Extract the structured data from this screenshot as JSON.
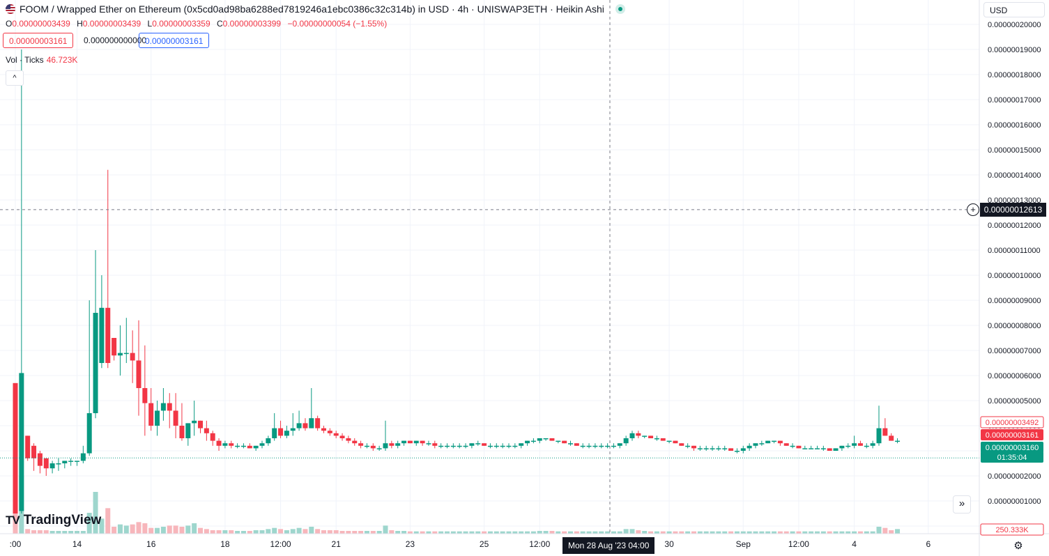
{
  "header": {
    "title": "FOOM / Wrapped Ether on Ethereum (0x5cd0ad98ba6288ed7819246a1ebc0386c32c314b) in USD · 4h · UNISWAP3ETH · Heikin Ashi",
    "o_key": "O",
    "o_val": "0.00000003439",
    "h_key": "H",
    "h_val": "0.00000003439",
    "l_key": "L",
    "l_val": "0.00000003359",
    "c_key": "C",
    "c_val": "0.00000003399",
    "change": "−0.00000000054 (−1.55%)"
  },
  "price_boxes": {
    "sell": "0.00000003161",
    "spread": "0.000000000000",
    "buy": "0.00000003161"
  },
  "volume": {
    "label": "Vol · Ticks",
    "value": "46.723K",
    "axis_label": "250.333K"
  },
  "currency_select": "USD",
  "logo_text": "TradingView",
  "crosshair": {
    "x_label": "Mon 28 Aug '23   04:00",
    "y_label": "0.00000012613"
  },
  "price_labels": {
    "high_marker": "0.00000003492",
    "last": "0.00000003161",
    "bid": "0.00000003160",
    "countdown": "01:35:04"
  },
  "colors": {
    "up": "#089981",
    "down": "#f23645",
    "up_vol": "#9ed6cd",
    "down_vol": "#f7b6bb",
    "grid": "#f0f3fa",
    "text": "#131722"
  },
  "icons": {
    "collapse": "chevron-up-icon",
    "goto_realtime": "double-chevron-right-icon",
    "settings": "gear-icon",
    "crosshair_add": "plus-circle-icon",
    "live": "live-dot-icon"
  },
  "chart_data": {
    "type": "candlestick",
    "style": "Heikin Ashi",
    "interval": "4h",
    "exchange": "UNISWAP3ETH",
    "y_axis_ticks": [
      "0.00000020000",
      "0.00000019000",
      "0.00000018000",
      "0.00000017000",
      "0.00000016000",
      "0.00000015000",
      "0.00000014000",
      "0.00000013000",
      "0.00000012000",
      "0.00000011000",
      "0.00000010000",
      "0.00000009000",
      "0.00000008000",
      "0.00000007000",
      "0.00000006000",
      "0.00000005000",
      "0.00000004000",
      "0.00000003000",
      "0.00000002000",
      "0.00000001000",
      "0.00000000000"
    ],
    "ylim": [
      0,
      2.1e-07
    ],
    "x_axis_ticks": [
      {
        "label": ":00",
        "idx": 0
      },
      {
        "label": "14",
        "idx": 10
      },
      {
        "label": "16",
        "idx": 22
      },
      {
        "label": "18",
        "idx": 34
      },
      {
        "label": "12:00",
        "idx": 43
      },
      {
        "label": "21",
        "idx": 52
      },
      {
        "label": "23",
        "idx": 64
      },
      {
        "label": "25",
        "idx": 76
      },
      {
        "label": "12:00",
        "idx": 85
      },
      {
        "label": "30",
        "idx": 106
      },
      {
        "label": "Sep",
        "idx": 118
      },
      {
        "label": "12:00",
        "idx": 127
      },
      {
        "label": "4",
        "idx": 136
      },
      {
        "label": "6",
        "idx": 148
      }
    ],
    "candles_ohlc_x1e8": [
      [
        5.7,
        5.5,
        0.6,
        0.5
      ],
      [
        0.6,
        19.0,
        0.5,
        6.1
      ],
      [
        3.6,
        3.6,
        2.6,
        2.7
      ],
      [
        3.2,
        3.3,
        2.2,
        2.7
      ],
      [
        2.9,
        3.0,
        2.1,
        2.4
      ],
      [
        2.7,
        2.7,
        2.0,
        2.3
      ],
      [
        2.3,
        2.6,
        2.1,
        2.5
      ],
      [
        2.5,
        2.7,
        2.2,
        2.5
      ],
      [
        2.5,
        2.6,
        2.3,
        2.6
      ],
      [
        2.6,
        2.7,
        2.4,
        2.6
      ],
      [
        2.6,
        2.6,
        2.4,
        2.6
      ],
      [
        2.6,
        3.2,
        2.5,
        2.9
      ],
      [
        2.9,
        9.0,
        2.8,
        4.5
      ],
      [
        4.5,
        11.0,
        4.3,
        8.5
      ],
      [
        6.5,
        10.0,
        6.3,
        8.7
      ],
      [
        8.7,
        14.2,
        6.3,
        6.5
      ],
      [
        7.5,
        7.5,
        6.6,
        6.8
      ],
      [
        6.8,
        8.0,
        6.0,
        6.9
      ],
      [
        6.9,
        8.3,
        6.5,
        6.9
      ],
      [
        6.9,
        7.8,
        5.7,
        6.6
      ],
      [
        6.6,
        8.2,
        4.4,
        5.5
      ],
      [
        5.5,
        7.2,
        3.6,
        4.9
      ],
      [
        4.9,
        5.5,
        3.8,
        4.0
      ],
      [
        4.0,
        5.0,
        3.6,
        4.6
      ],
      [
        4.6,
        5.5,
        4.2,
        4.9
      ],
      [
        4.9,
        5.3,
        3.9,
        4.6
      ],
      [
        4.6,
        5.3,
        3.5,
        4.0
      ],
      [
        4.0,
        4.9,
        3.4,
        3.5
      ],
      [
        3.5,
        4.1,
        3.2,
        4.1
      ],
      [
        4.1,
        5.0,
        3.6,
        4.2
      ],
      [
        4.2,
        4.2,
        3.7,
        3.9
      ],
      [
        3.9,
        4.2,
        3.4,
        3.7
      ],
      [
        3.7,
        3.8,
        3.2,
        3.4
      ],
      [
        3.4,
        3.5,
        3.0,
        3.2
      ],
      [
        3.2,
        3.4,
        3.1,
        3.3
      ],
      [
        3.3,
        3.4,
        3.1,
        3.2
      ],
      [
        3.2,
        3.3,
        3.1,
        3.2
      ],
      [
        3.2,
        3.3,
        3.1,
        3.2
      ],
      [
        3.2,
        3.3,
        3.1,
        3.1
      ],
      [
        3.1,
        3.2,
        3.0,
        3.2
      ],
      [
        3.2,
        3.4,
        3.1,
        3.3
      ],
      [
        3.3,
        3.6,
        3.2,
        3.5
      ],
      [
        3.5,
        4.5,
        3.4,
        3.9
      ],
      [
        3.9,
        4.2,
        3.5,
        3.6
      ],
      [
        3.6,
        4.0,
        3.5,
        3.8
      ],
      [
        3.8,
        4.5,
        3.6,
        3.9
      ],
      [
        3.9,
        4.6,
        3.8,
        4.1
      ],
      [
        4.1,
        4.3,
        3.8,
        3.9
      ],
      [
        3.9,
        5.5,
        3.9,
        4.3
      ],
      [
        4.3,
        4.4,
        3.8,
        3.9
      ],
      [
        3.9,
        4.0,
        3.7,
        3.8
      ],
      [
        3.8,
        3.9,
        3.6,
        3.7
      ],
      [
        3.7,
        3.8,
        3.5,
        3.6
      ],
      [
        3.6,
        3.7,
        3.4,
        3.5
      ],
      [
        3.5,
        3.6,
        3.3,
        3.4
      ],
      [
        3.4,
        3.5,
        3.2,
        3.3
      ],
      [
        3.3,
        3.4,
        3.1,
        3.2
      ],
      [
        3.2,
        3.3,
        3.1,
        3.2
      ],
      [
        3.2,
        3.3,
        3.0,
        3.1
      ],
      [
        3.1,
        3.2,
        3.0,
        3.1
      ],
      [
        3.1,
        4.2,
        3.0,
        3.3
      ],
      [
        3.3,
        3.4,
        3.1,
        3.2
      ],
      [
        3.2,
        3.4,
        3.1,
        3.3
      ],
      [
        3.3,
        3.4,
        3.2,
        3.4
      ],
      [
        3.4,
        3.4,
        3.3,
        3.3
      ],
      [
        3.3,
        3.4,
        3.2,
        3.4
      ],
      [
        3.4,
        3.4,
        3.2,
        3.3
      ],
      [
        3.3,
        3.4,
        3.2,
        3.3
      ],
      [
        3.3,
        3.4,
        3.1,
        3.2
      ],
      [
        3.2,
        3.3,
        3.1,
        3.2
      ],
      [
        3.2,
        3.3,
        3.1,
        3.2
      ],
      [
        3.2,
        3.3,
        3.1,
        3.2
      ],
      [
        3.2,
        3.3,
        3.1,
        3.2
      ],
      [
        3.2,
        3.3,
        3.1,
        3.2
      ],
      [
        3.2,
        3.3,
        3.1,
        3.3
      ],
      [
        3.3,
        3.4,
        3.2,
        3.3
      ],
      [
        3.3,
        3.3,
        3.2,
        3.2
      ],
      [
        3.2,
        3.3,
        3.1,
        3.2
      ],
      [
        3.2,
        3.3,
        3.1,
        3.2
      ],
      [
        3.2,
        3.3,
        3.1,
        3.2
      ],
      [
        3.2,
        3.3,
        3.1,
        3.2
      ],
      [
        3.2,
        3.3,
        3.1,
        3.2
      ],
      [
        3.2,
        3.3,
        3.1,
        3.3
      ],
      [
        3.3,
        3.4,
        3.2,
        3.4
      ],
      [
        3.4,
        3.5,
        3.3,
        3.4
      ],
      [
        3.4,
        3.5,
        3.3,
        3.5
      ],
      [
        3.5,
        3.5,
        3.4,
        3.5
      ],
      [
        3.5,
        3.5,
        3.4,
        3.4
      ],
      [
        3.4,
        3.4,
        3.3,
        3.4
      ],
      [
        3.4,
        3.4,
        3.3,
        3.3
      ],
      [
        3.3,
        3.4,
        3.2,
        3.3
      ],
      [
        3.3,
        3.3,
        3.2,
        3.2
      ],
      [
        3.2,
        3.3,
        3.1,
        3.2
      ],
      [
        3.2,
        3.3,
        3.1,
        3.2
      ],
      [
        3.2,
        3.3,
        3.1,
        3.2
      ],
      [
        3.2,
        3.3,
        3.1,
        3.2
      ],
      [
        3.2,
        3.3,
        3.1,
        3.2
      ],
      [
        3.2,
        3.3,
        3.1,
        3.2
      ],
      [
        3.2,
        3.3,
        3.1,
        3.3
      ],
      [
        3.3,
        3.6,
        3.2,
        3.5
      ],
      [
        3.5,
        3.8,
        3.4,
        3.7
      ],
      [
        3.7,
        3.8,
        3.5,
        3.6
      ],
      [
        3.6,
        3.6,
        3.5,
        3.6
      ],
      [
        3.6,
        3.6,
        3.5,
        3.5
      ],
      [
        3.5,
        3.6,
        3.4,
        3.5
      ],
      [
        3.5,
        3.5,
        3.4,
        3.4
      ],
      [
        3.4,
        3.4,
        3.3,
        3.4
      ],
      [
        3.4,
        3.4,
        3.3,
        3.3
      ],
      [
        3.3,
        3.3,
        3.2,
        3.2
      ],
      [
        3.2,
        3.3,
        3.1,
        3.2
      ],
      [
        3.2,
        3.2,
        3.0,
        3.1
      ],
      [
        3.1,
        3.2,
        3.0,
        3.1
      ],
      [
        3.1,
        3.2,
        3.0,
        3.1
      ],
      [
        3.1,
        3.2,
        3.0,
        3.1
      ],
      [
        3.1,
        3.2,
        3.0,
        3.1
      ],
      [
        3.1,
        3.2,
        3.0,
        3.1
      ],
      [
        3.1,
        3.1,
        3.0,
        3.0
      ],
      [
        3.0,
        3.1,
        2.9,
        3.0
      ],
      [
        3.0,
        3.2,
        2.9,
        3.1
      ],
      [
        3.1,
        3.3,
        3.0,
        3.2
      ],
      [
        3.2,
        3.3,
        3.1,
        3.3
      ],
      [
        3.3,
        3.4,
        3.2,
        3.3
      ],
      [
        3.3,
        3.4,
        3.3,
        3.4
      ],
      [
        3.4,
        3.4,
        3.3,
        3.4
      ],
      [
        3.4,
        3.4,
        3.2,
        3.3
      ],
      [
        3.3,
        3.3,
        3.2,
        3.2
      ],
      [
        3.2,
        3.3,
        3.1,
        3.2
      ],
      [
        3.2,
        3.2,
        3.1,
        3.1
      ],
      [
        3.1,
        3.2,
        3.1,
        3.1
      ],
      [
        3.1,
        3.2,
        3.1,
        3.1
      ],
      [
        3.1,
        3.2,
        3.1,
        3.1
      ],
      [
        3.1,
        3.2,
        3.0,
        3.1
      ],
      [
        3.1,
        3.1,
        3.0,
        3.0
      ],
      [
        3.0,
        3.1,
        3.0,
        3.1
      ],
      [
        3.1,
        3.2,
        3.0,
        3.2
      ],
      [
        3.2,
        3.3,
        3.1,
        3.2
      ],
      [
        3.2,
        3.6,
        3.1,
        3.3
      ],
      [
        3.3,
        3.4,
        3.2,
        3.2
      ],
      [
        3.2,
        3.3,
        3.1,
        3.2
      ],
      [
        3.2,
        3.4,
        3.1,
        3.3
      ],
      [
        3.3,
        4.8,
        3.2,
        3.9
      ],
      [
        3.9,
        4.3,
        3.6,
        3.6
      ],
      [
        3.6,
        3.7,
        3.4,
        3.4
      ],
      [
        3.4,
        3.5,
        3.3,
        3.4
      ]
    ],
    "volume_values_k": [
      110,
      250,
      20,
      15,
      15,
      15,
      12,
      12,
      12,
      12,
      12,
      12,
      90,
      180,
      65,
      110,
      30,
      40,
      35,
      40,
      50,
      45,
      25,
      25,
      30,
      35,
      35,
      30,
      35,
      45,
      25,
      20,
      15,
      15,
      15,
      15,
      12,
      12,
      12,
      15,
      15,
      20,
      25,
      20,
      15,
      20,
      25,
      20,
      30,
      20,
      15,
      15,
      15,
      12,
      12,
      12,
      12,
      12,
      12,
      12,
      35,
      15,
      12,
      12,
      10,
      10,
      10,
      10,
      10,
      10,
      10,
      10,
      10,
      10,
      10,
      10,
      10,
      10,
      10,
      10,
      10,
      10,
      10,
      10,
      10,
      12,
      12,
      12,
      10,
      10,
      10,
      10,
      10,
      10,
      10,
      10,
      10,
      10,
      10,
      20,
      20,
      15,
      12,
      10,
      10,
      10,
      10,
      10,
      10,
      10,
      10,
      10,
      10,
      10,
      10,
      10,
      10,
      10,
      10,
      10,
      10,
      10,
      10,
      10,
      10,
      10,
      10,
      10,
      10,
      10,
      10,
      10,
      10,
      10,
      10,
      10,
      10,
      10,
      10,
      10,
      30,
      25,
      15,
      20
    ],
    "volume_ylim": [
      0,
      270
    ]
  }
}
